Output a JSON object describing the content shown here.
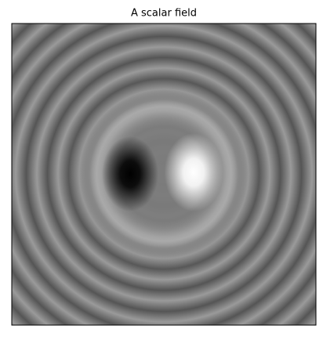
{
  "chart_data": {
    "type": "image",
    "title": "A scalar field"
  }
}
